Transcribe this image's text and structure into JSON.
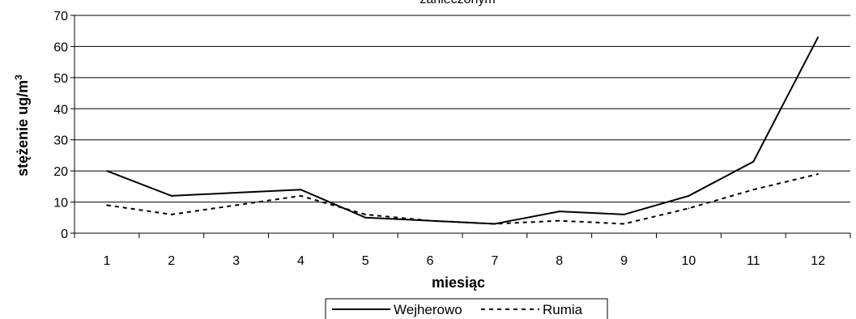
{
  "chart_data": {
    "type": "line",
    "title": "zanieczonym",
    "xlabel": "miesiąc",
    "ylabel_main": "stężenie ug/m",
    "ylabel_sup": "3",
    "x": [
      1,
      2,
      3,
      4,
      5,
      6,
      7,
      8,
      9,
      10,
      11,
      12
    ],
    "ylim": [
      0,
      70
    ],
    "yticks": [
      0,
      10,
      20,
      30,
      40,
      50,
      60,
      70
    ],
    "grid": "horizontal",
    "legend_position": "bottom",
    "series": [
      {
        "name": "Wejherowo",
        "style": "solid",
        "color": "#000000",
        "values": [
          20,
          12,
          13,
          14,
          5,
          4,
          3,
          7,
          6,
          12,
          23,
          63
        ]
      },
      {
        "name": "Rumia",
        "style": "dashed",
        "color": "#000000",
        "values": [
          9,
          6,
          9,
          12,
          6,
          4,
          3,
          4,
          3,
          8,
          14,
          19
        ]
      }
    ]
  }
}
